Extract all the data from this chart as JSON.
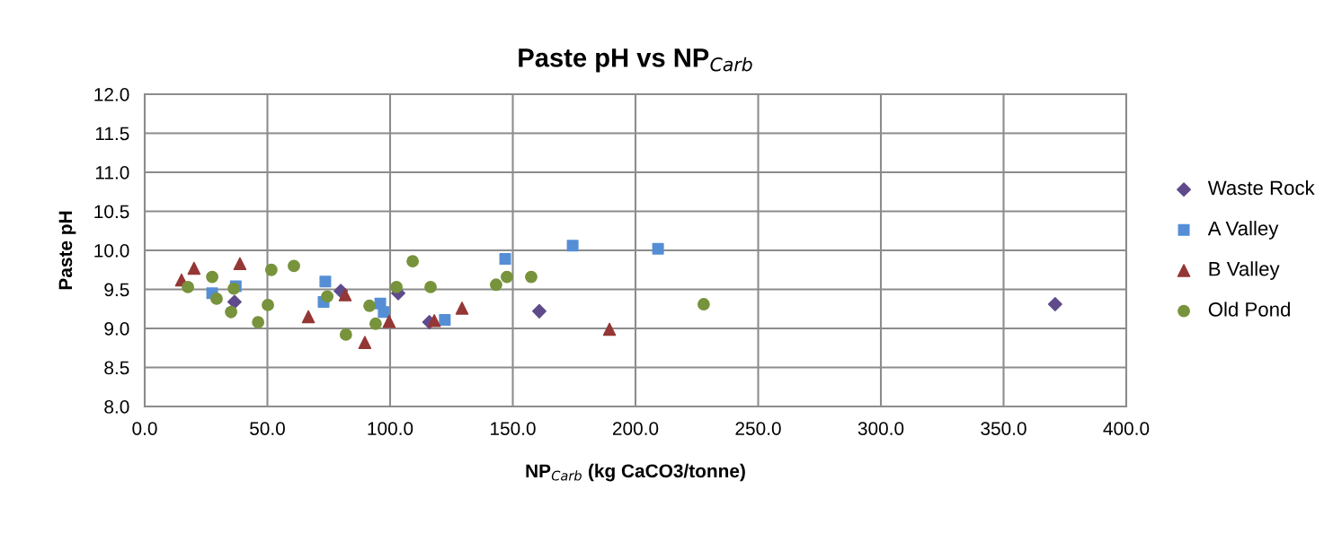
{
  "chart_data": {
    "type": "scatter",
    "title": "Paste pH vs NP$_{Carb}$",
    "xlabel": "NP$_{Carb}$ (kg CaCO3/tonne)",
    "ylabel": "Paste pH",
    "xlim": [
      0,
      400
    ],
    "xticks": [
      {
        "value": 0,
        "label": "0.0"
      },
      {
        "value": 50,
        "label": "50.0"
      },
      {
        "value": 100,
        "label": "100.0"
      },
      {
        "value": 150,
        "label": "150.0"
      },
      {
        "value": 200,
        "label": "200.0"
      },
      {
        "value": 250,
        "label": "250.0"
      },
      {
        "value": 300,
        "label": "300.0"
      },
      {
        "value": 350,
        "label": "350.0"
      },
      {
        "value": 400,
        "label": "400.0"
      }
    ],
    "ylim": [
      8,
      12
    ],
    "yticks": [
      {
        "value": 8,
        "label": "8.0"
      },
      {
        "value": 8.5,
        "label": "8.5"
      },
      {
        "value": 9,
        "label": "9.0"
      },
      {
        "value": 9.5,
        "label": "9.5"
      },
      {
        "value": 10,
        "label": "10.0"
      },
      {
        "value": 10.5,
        "label": "10.5"
      },
      {
        "value": 11,
        "label": "11.0"
      },
      {
        "value": 11.5,
        "label": "11.5"
      },
      {
        "value": 12,
        "label": "12.0"
      }
    ],
    "grid": true,
    "legend": "right",
    "series": [
      {
        "name": "Waste Rock",
        "color": "#5f4b8b",
        "marker": "diamond",
        "x": [
          36.6,
          79.9,
          103.3,
          116,
          160.8,
          371
        ],
        "values": [
          9.34,
          9.48,
          9.45,
          9.08,
          9.22,
          9.31
        ]
      },
      {
        "name": "A Valley",
        "color": "#558ed5",
        "marker": "square",
        "x": [
          27.5,
          37.1,
          73.6,
          72.9,
          96,
          97.4,
          122.3,
          146.9,
          174.4,
          209.2
        ],
        "values": [
          9.45,
          9.54,
          9.6,
          9.34,
          9.32,
          9.21,
          9.11,
          9.89,
          10.06,
          10.02
        ]
      },
      {
        "name": "B Valley",
        "color": "#953735",
        "marker": "triangle",
        "x": [
          15,
          20.1,
          38.8,
          66.7,
          81.7,
          89.7,
          99.6,
          118,
          129.3,
          189.4
        ],
        "values": [
          9.62,
          9.77,
          9.83,
          9.15,
          9.43,
          8.82,
          9.09,
          9.1,
          9.26,
          8.99
        ]
      },
      {
        "name": "Old Pond",
        "color": "#77933c",
        "marker": "circle",
        "x": [
          17.6,
          27.5,
          29.3,
          35.2,
          36.3,
          46.2,
          50.2,
          51.6,
          60.8,
          74.4,
          82,
          91.6,
          94.1,
          102.6,
          109.2,
          116.5,
          143.2,
          147.6,
          157.5,
          227.8
        ],
        "values": [
          9.53,
          9.66,
          9.38,
          9.21,
          9.51,
          9.08,
          9.3,
          9.75,
          9.8,
          9.41,
          8.92,
          9.29,
          9.06,
          9.53,
          9.86,
          9.53,
          9.56,
          9.66,
          9.66,
          9.31
        ]
      }
    ]
  }
}
